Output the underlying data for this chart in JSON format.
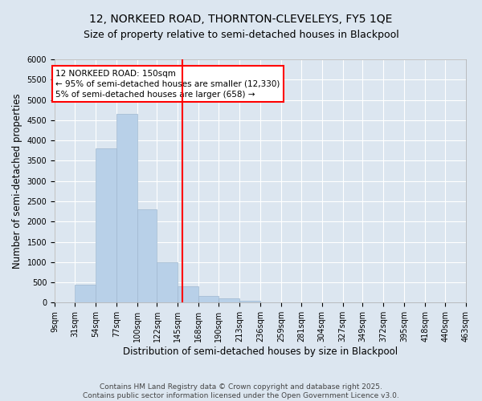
{
  "title": "12, NORKEED ROAD, THORNTON-CLEVELEYS, FY5 1QE",
  "subtitle": "Size of property relative to semi-detached houses in Blackpool",
  "xlabel": "Distribution of semi-detached houses by size in Blackpool",
  "ylabel": "Number of semi-detached properties",
  "bar_color": "#b8d0e8",
  "bar_edge_color": "#a0b8d0",
  "background_color": "#dce6f0",
  "plot_bg_color": "#dce6f0",
  "grid_color": "#ffffff",
  "vline_x": 150,
  "vline_color": "red",
  "annotation_line1": "12 NORKEED ROAD: 150sqm",
  "annotation_line2": "← 95% of semi-detached houses are smaller (12,330)",
  "annotation_line3": "5% of semi-detached houses are larger (658) →",
  "footer": "Contains HM Land Registry data © Crown copyright and database right 2025.\nContains public sector information licensed under the Open Government Licence v3.0.",
  "bin_edges": [
    9,
    31,
    54,
    77,
    100,
    122,
    145,
    168,
    190,
    213,
    236,
    259,
    281,
    304,
    327,
    349,
    372,
    395,
    418,
    440,
    463
  ],
  "bin_counts": [
    0,
    450,
    3800,
    4650,
    2300,
    1000,
    400,
    170,
    100,
    55,
    0,
    0,
    0,
    0,
    0,
    0,
    0,
    0,
    0,
    0
  ],
  "ylim": [
    0,
    6000
  ],
  "yticks": [
    0,
    500,
    1000,
    1500,
    2000,
    2500,
    3000,
    3500,
    4000,
    4500,
    5000,
    5500,
    6000
  ],
  "title_fontsize": 10,
  "subtitle_fontsize": 9,
  "tick_fontsize": 7,
  "label_fontsize": 8.5,
  "footer_fontsize": 6.5,
  "annot_fontsize": 7.5
}
